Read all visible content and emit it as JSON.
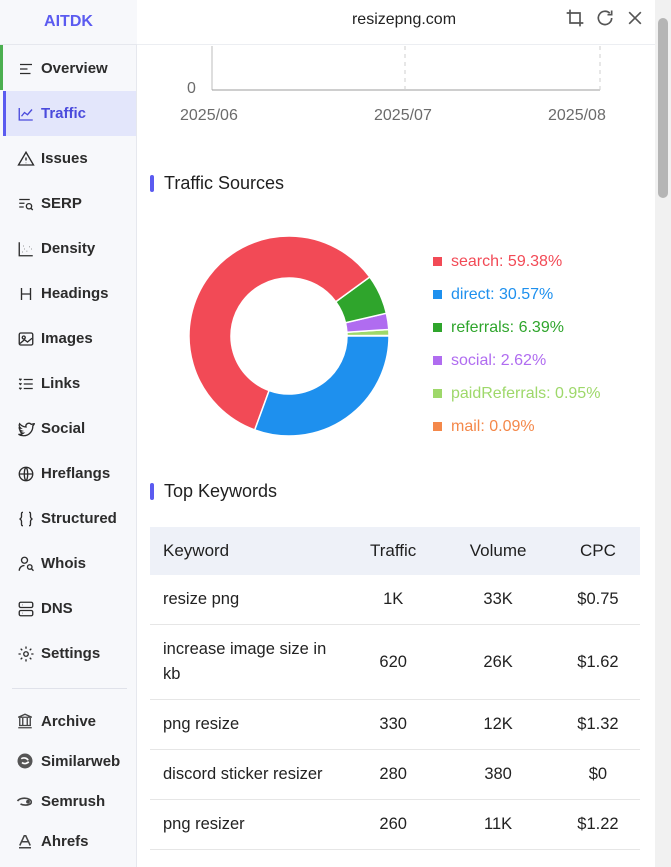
{
  "brand": "AITDK",
  "header": {
    "site": "resizepng.com"
  },
  "sidebar": {
    "items": [
      {
        "label": "Overview",
        "icon": "overview-icon"
      },
      {
        "label": "Traffic",
        "icon": "traffic-icon",
        "active": true
      },
      {
        "label": "Issues",
        "icon": "warning-icon"
      },
      {
        "label": "SERP",
        "icon": "serp-icon"
      },
      {
        "label": "Density",
        "icon": "density-icon"
      },
      {
        "label": "Headings",
        "icon": "heading-icon"
      },
      {
        "label": "Images",
        "icon": "image-icon"
      },
      {
        "label": "Links",
        "icon": "links-icon"
      },
      {
        "label": "Social",
        "icon": "twitter-icon"
      },
      {
        "label": "Hreflangs",
        "icon": "globe-icon"
      },
      {
        "label": "Structured",
        "icon": "braces-icon"
      },
      {
        "label": "Whois",
        "icon": "user-search-icon"
      },
      {
        "label": "DNS",
        "icon": "server-icon"
      },
      {
        "label": "Settings",
        "icon": "gear-icon"
      }
    ],
    "external": [
      {
        "label": "Archive",
        "icon": "archive-icon"
      },
      {
        "label": "Similarweb",
        "icon": "similarweb-icon"
      },
      {
        "label": "Semrush",
        "icon": "semrush-icon"
      },
      {
        "label": "Ahrefs",
        "icon": "ahrefs-icon"
      }
    ]
  },
  "traffic_chart": {
    "y_tick": "0",
    "x_ticks": [
      "2025/06",
      "2025/07",
      "2025/08"
    ]
  },
  "sections": {
    "sources_title": "Traffic Sources",
    "keywords_title": "Top Keywords"
  },
  "chart_data": {
    "type": "pie",
    "title": "Traffic Sources",
    "slices": [
      {
        "name": "search",
        "value": 59.38,
        "label": "search: 59.38%",
        "color": "#f24a56"
      },
      {
        "name": "direct",
        "value": 30.57,
        "label": "direct: 30.57%",
        "color": "#1e90ee"
      },
      {
        "name": "referrals",
        "value": 6.39,
        "label": "referrals: 6.39%",
        "color": "#2fa52c"
      },
      {
        "name": "social",
        "value": 2.62,
        "label": "social: 2.62%",
        "color": "#b06cf0"
      },
      {
        "name": "paidReferrals",
        "value": 0.95,
        "label": "paidReferrals: 0.95%",
        "color": "#9ed86a"
      },
      {
        "name": "mail",
        "value": 0.09,
        "label": "mail: 0.09%",
        "color": "#f4884a"
      }
    ]
  },
  "keywords": {
    "headers": [
      "Keyword",
      "Traffic",
      "Volume",
      "CPC"
    ],
    "rows": [
      {
        "keyword": "resize png",
        "traffic": "1K",
        "volume": "33K",
        "cpc": "$0.75"
      },
      {
        "keyword": "increase image size in kb",
        "traffic": "620",
        "volume": "26K",
        "cpc": "$1.62"
      },
      {
        "keyword": "png resize",
        "traffic": "330",
        "volume": "12K",
        "cpc": "$1.32"
      },
      {
        "keyword": "discord sticker resizer",
        "traffic": "280",
        "volume": "380",
        "cpc": "$0"
      },
      {
        "keyword": "png resizer",
        "traffic": "260",
        "volume": "11K",
        "cpc": "$1.22"
      }
    ]
  }
}
